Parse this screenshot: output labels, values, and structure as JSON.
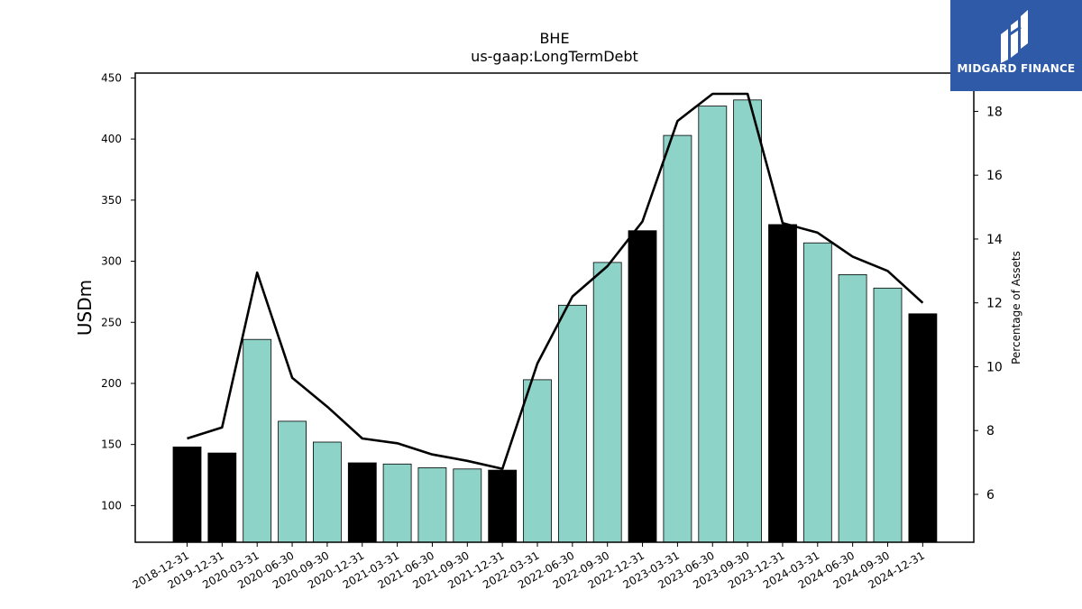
{
  "chart_data": {
    "type": "bar",
    "title": "BHE",
    "subtitle": "us-gaap:LongTermDebt",
    "ylabel": "USDm",
    "y2label": "Percentage of Assets",
    "categories": [
      "2018-12-31",
      "2019-12-31",
      "2020-03-31",
      "2020-06-30",
      "2020-09-30",
      "2020-12-31",
      "2021-03-31",
      "2021-06-30",
      "2021-09-30",
      "2021-12-31",
      "2022-03-31",
      "2022-06-30",
      "2022-09-30",
      "2022-12-31",
      "2023-03-31",
      "2023-06-30",
      "2023-09-30",
      "2023-12-31",
      "2024-03-31",
      "2024-06-30",
      "2024-09-30",
      "2024-12-31"
    ],
    "series": [
      {
        "type": "bar",
        "values": [
          148,
          143,
          236,
          169,
          152,
          135,
          134,
          131,
          130,
          129,
          203,
          264,
          299,
          325,
          403,
          427,
          432,
          330,
          315,
          289,
          278,
          257
        ],
        "fiscal_year_end": [
          true,
          true,
          false,
          false,
          false,
          true,
          false,
          false,
          false,
          true,
          false,
          false,
          false,
          true,
          false,
          false,
          false,
          true,
          false,
          false,
          false,
          true
        ],
        "colors": {
          "year_end": "#000000",
          "quarter": "#8dd3c7"
        }
      },
      {
        "type": "line",
        "axis": "right",
        "values": [
          7.75,
          8.1,
          12.95,
          9.65,
          8.75,
          7.75,
          7.6,
          7.25,
          7.05,
          6.8,
          10.1,
          12.2,
          13.15,
          14.55,
          17.7,
          18.55,
          18.55,
          14.5,
          14.2,
          13.45,
          13.0,
          12.0
        ],
        "color": "#000000"
      }
    ],
    "ylim": [
      70,
      454
    ],
    "y2lim": [
      4.5,
      19.2
    ],
    "yticks": [
      "100",
      "150",
      "200",
      "250",
      "300",
      "350",
      "400",
      "450"
    ],
    "y2ticks": [
      "6",
      "8",
      "10",
      "12",
      "14",
      "16",
      "18"
    ],
    "grid": false,
    "legend": "none"
  },
  "logo": {
    "text": "MIDGARD FINANCE",
    "bg_color": "#2f5aa8"
  }
}
